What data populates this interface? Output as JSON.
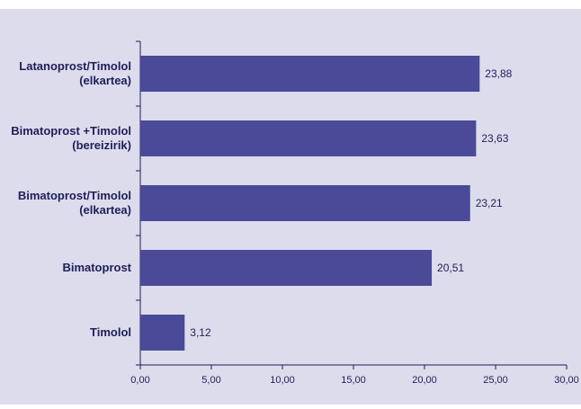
{
  "colors": {
    "panel": "#dcdcec",
    "bar": "#4a4a99",
    "axis": "#1e1e5a",
    "text": "#1e1e5a"
  },
  "chart_data": {
    "type": "bar",
    "orientation": "horizontal",
    "title": "",
    "xlabel": "",
    "ylabel": "",
    "categories": [
      [
        "Latanoprost/Timolol",
        "(elkartea)"
      ],
      [
        "Bimatoprost +Timolol",
        "(bereizirik)"
      ],
      [
        "Bimatoprost/Timolol",
        "(elkartea)"
      ],
      [
        "Bimatoprost"
      ],
      [
        "Timolol"
      ]
    ],
    "values": [
      23.88,
      23.63,
      23.21,
      20.51,
      3.12
    ],
    "value_labels": [
      "23,88",
      "23,63",
      "23,21",
      "20,51",
      "3,12"
    ],
    "xlim": [
      0,
      30
    ],
    "x_ticks": [
      0,
      5,
      10,
      15,
      20,
      25,
      30
    ],
    "x_tick_labels": [
      "0,00",
      "5,00",
      "10,00",
      "15,00",
      "20,00",
      "25,00",
      "30,00"
    ],
    "grid": false,
    "legend": "none"
  }
}
